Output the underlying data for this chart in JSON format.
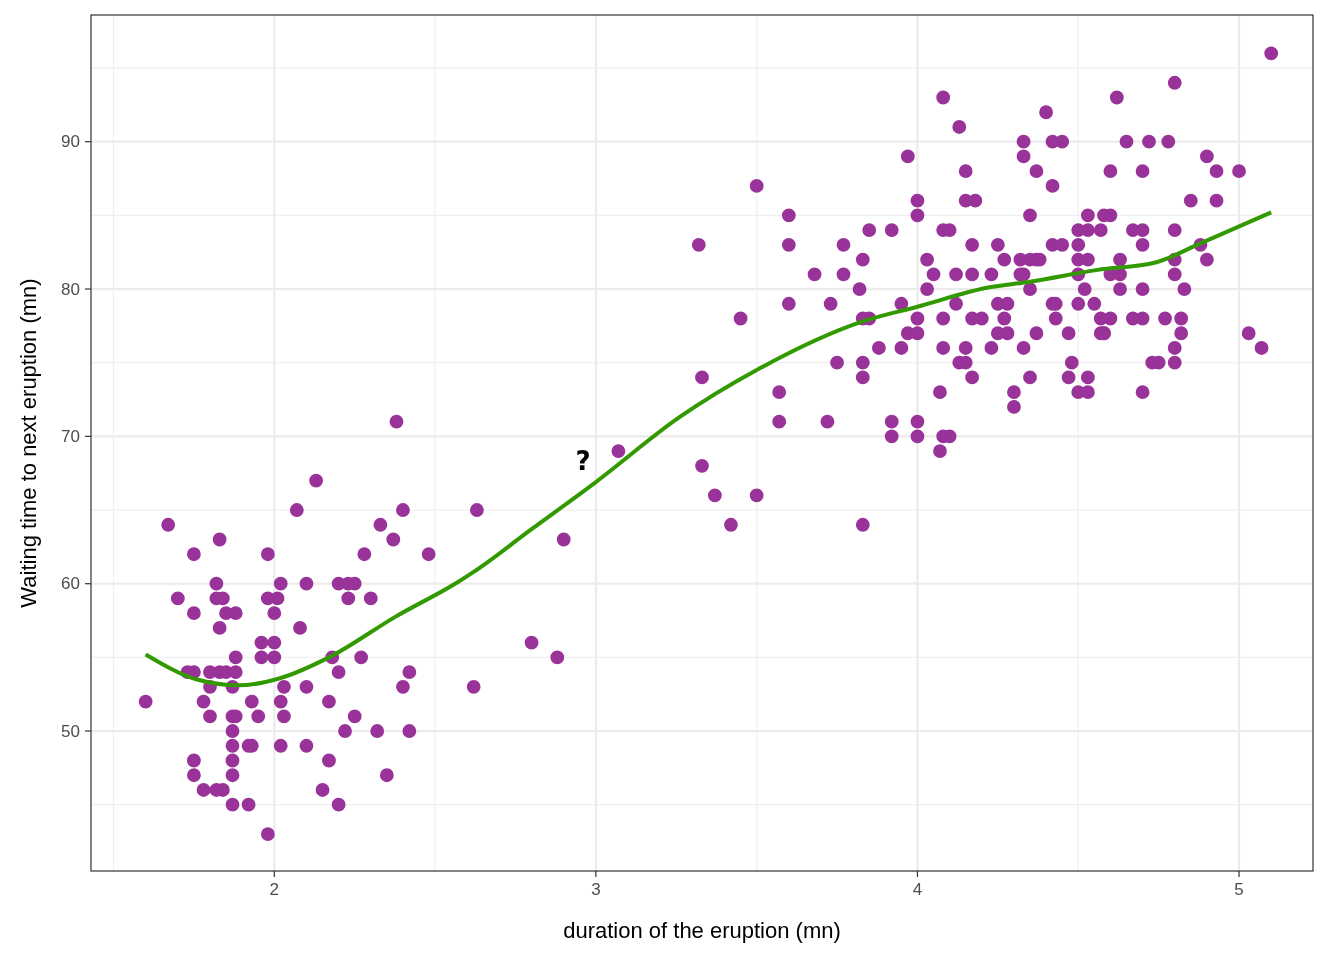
{
  "chart_data": {
    "type": "scatter",
    "xlabel": "duration of the eruption (mn)",
    "ylabel": "Waiting time to next eruption (mn)",
    "xlim": [
      1.43,
      5.23
    ],
    "ylim": [
      40.5,
      98.6
    ],
    "xticks": [
      2,
      3,
      4,
      5
    ],
    "yticks": [
      50,
      60,
      70,
      80,
      90
    ],
    "grid": true,
    "annotations": [
      "?"
    ],
    "series": [
      {
        "marker": "circle",
        "color": "#993399",
        "x": [
          1.6,
          1.67,
          1.7,
          1.75,
          1.75,
          1.83,
          1.82,
          1.82,
          1.84,
          1.85,
          1.88,
          1.83,
          1.88,
          1.73,
          1.75,
          1.8,
          1.83,
          1.85,
          1.88,
          1.8,
          1.87,
          1.78,
          1.8,
          1.87,
          1.88,
          1.87,
          1.87,
          1.87,
          1.87,
          1.75,
          1.75,
          1.78,
          1.82,
          1.84,
          1.87,
          1.92,
          1.98,
          1.98,
          2.02,
          1.98,
          2.01,
          2.0,
          1.96,
          2.0,
          1.96,
          2.0,
          2.03,
          1.93,
          2.02,
          1.95,
          2.03,
          2.02,
          1.92,
          1.93,
          2.07,
          2.13,
          2.1,
          2.08,
          2.1,
          2.1,
          2.15,
          2.2,
          2.17,
          2.17,
          2.18,
          2.2,
          2.2,
          2.23,
          2.25,
          2.23,
          2.3,
          2.28,
          2.27,
          2.25,
          2.22,
          2.32,
          2.33,
          2.37,
          2.38,
          2.4,
          2.48,
          2.42,
          2.4,
          2.42,
          2.35,
          2.63,
          2.62,
          2.8,
          2.88,
          2.9,
          3.07,
          3.33,
          3.37,
          3.42,
          3.5,
          3.32,
          3.6,
          3.6,
          3.33,
          3.45,
          3.6,
          3.57,
          3.57,
          3.5,
          3.68,
          3.77,
          3.77,
          3.73,
          3.83,
          3.82,
          3.85,
          3.92,
          3.83,
          3.85,
          3.75,
          3.83,
          3.83,
          3.72,
          3.88,
          3.95,
          3.95,
          3.97,
          4.0,
          4.0,
          4.0,
          4.0,
          4.03,
          4.05,
          4.03,
          3.92,
          3.92,
          4.0,
          4.0,
          4.07,
          4.08,
          4.1,
          4.07,
          4.15,
          4.15,
          4.18,
          4.08,
          4.1,
          4.17,
          4.12,
          4.17,
          4.12,
          4.08,
          4.17,
          4.2,
          4.08,
          4.15,
          4.13,
          4.15,
          4.17,
          3.83,
          4.08,
          4.13,
          3.97,
          4.25,
          4.27,
          4.23,
          4.25,
          4.28,
          4.27,
          4.25,
          4.28,
          4.23,
          4.33,
          4.33,
          4.4,
          4.42,
          4.45,
          4.37,
          4.42,
          4.35,
          4.53,
          4.58,
          4.6,
          4.42,
          4.45,
          4.5,
          4.53,
          4.57,
          4.5,
          4.32,
          4.35,
          4.37,
          4.38,
          4.5,
          4.53,
          4.32,
          4.33,
          4.5,
          4.35,
          4.52,
          4.42,
          4.43,
          4.5,
          4.55,
          4.43,
          4.57,
          4.37,
          4.47,
          4.57,
          4.58,
          4.33,
          4.35,
          4.3,
          4.3,
          4.48,
          4.47,
          4.53,
          4.5,
          4.53,
          5.1,
          4.8,
          4.62,
          4.65,
          4.72,
          4.78,
          4.9,
          4.6,
          4.7,
          4.93,
          5.0,
          4.85,
          4.93,
          4.67,
          4.7,
          4.8,
          4.7,
          4.88,
          4.63,
          4.8,
          4.9,
          4.6,
          4.63,
          4.8,
          4.63,
          4.7,
          4.83,
          4.6,
          4.67,
          4.7,
          4.77,
          4.82,
          4.82,
          4.58,
          4.8,
          4.73,
          4.75,
          4.8,
          4.7,
          5.03,
          5.07
        ],
        "values": [
          52,
          64,
          59,
          62,
          58,
          63,
          60,
          59,
          59,
          58,
          58,
          57,
          55,
          54,
          54,
          54,
          54,
          54,
          54,
          53,
          53,
          52,
          51,
          51,
          51,
          50,
          49,
          48,
          47,
          48,
          47,
          46,
          46,
          46,
          45,
          45,
          43,
          62,
          60,
          59,
          59,
          58,
          56,
          56,
          55,
          55,
          53,
          52,
          52,
          51,
          51,
          49,
          49,
          49,
          65,
          67,
          60,
          57,
          53,
          49,
          46,
          45,
          48,
          52,
          55,
          54,
          60,
          60,
          60,
          59,
          59,
          62,
          55,
          51,
          50,
          50,
          64,
          63,
          71,
          65,
          62,
          54,
          53,
          50,
          47,
          65,
          53,
          56,
          55,
          63,
          69,
          68,
          66,
          64,
          87,
          83,
          85,
          83,
          74,
          78,
          79,
          73,
          71,
          66,
          81,
          83,
          81,
          79,
          82,
          80,
          84,
          84,
          78,
          78,
          75,
          75,
          74,
          71,
          76,
          79,
          76,
          77,
          77,
          78,
          86,
          85,
          82,
          81,
          80,
          71,
          70,
          71,
          70,
          73,
          70,
          70,
          69,
          88,
          86,
          86,
          84,
          84,
          83,
          81,
          81,
          79,
          78,
          78,
          78,
          76,
          76,
          75,
          75,
          74,
          64,
          93,
          91,
          89,
          83,
          82,
          81,
          79,
          79,
          78,
          77,
          77,
          76,
          90,
          89,
          92,
          90,
          90,
          88,
          87,
          85,
          85,
          85,
          85,
          83,
          83,
          84,
          84,
          84,
          83,
          82,
          82,
          82,
          82,
          82,
          82,
          81,
          81,
          81,
          80,
          80,
          79,
          79,
          79,
          79,
          78,
          78,
          77,
          77,
          77,
          77,
          76,
          74,
          73,
          72,
          75,
          74,
          74,
          73,
          73,
          96,
          94,
          93,
          90,
          90,
          90,
          89,
          88,
          88,
          88,
          88,
          86,
          86,
          84,
          84,
          84,
          83,
          83,
          82,
          82,
          82,
          81,
          81,
          81,
          80,
          80,
          80,
          78,
          78,
          78,
          78,
          78,
          77,
          77,
          76,
          75,
          75,
          75,
          73,
          77,
          76
        ]
      },
      {
        "type": "line",
        "color": "#339900",
        "x": [
          1.6,
          1.76,
          1.89,
          2.02,
          2.17,
          2.38,
          2.57,
          2.62,
          2.8,
          3.0,
          3.26,
          3.5,
          3.83,
          4.0,
          4.22,
          4.35,
          4.56,
          4.74,
          4.88,
          5.1
        ],
        "values": [
          55.2,
          53.5,
          53.1,
          53.6,
          55.0,
          57.8,
          60.1,
          60.8,
          63.7,
          66.9,
          71.3,
          74.5,
          77.8,
          78.8,
          80.1,
          80.5,
          81.3,
          81.8,
          83.1,
          85.2
        ]
      }
    ]
  }
}
